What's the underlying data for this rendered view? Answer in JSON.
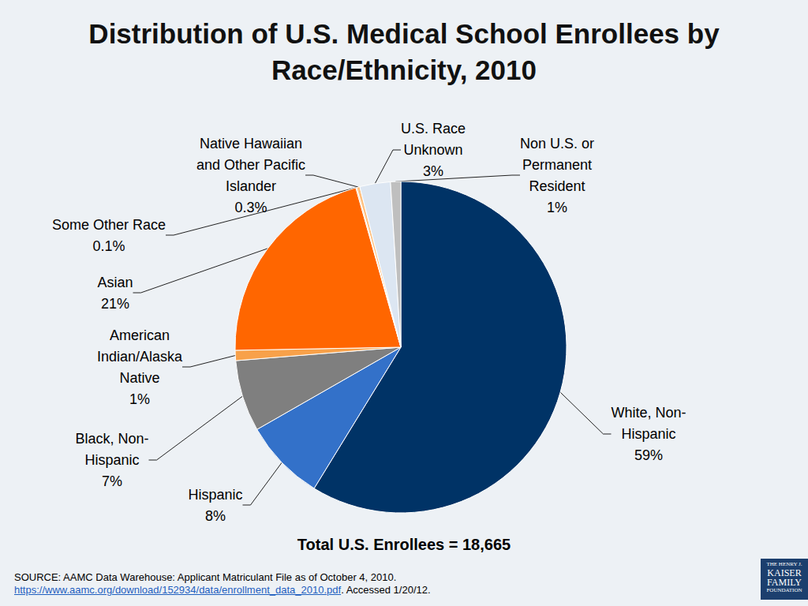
{
  "chart_data": {
    "type": "pie",
    "title": "Distribution of U.S. Medical School Enrollees by\nRace/Ethnicity, 2010",
    "categories": [
      "White, Non-\nHispanic",
      "Hispanic",
      "Black, Non-\nHispanic",
      "American\nIndian/Alaska\nNative",
      "Asian",
      "Some Other Race",
      "Native Hawaiian\nand Other Pacific\nIslander",
      "U.S. Race\nUnknown",
      "Non U.S. or\nPermanent\nResident"
    ],
    "values": [
      59,
      8,
      7,
      1,
      21,
      0.1,
      0.3,
      3,
      1
    ],
    "value_labels": [
      "59%",
      "8%",
      "7%",
      "1%",
      "21%",
      "0.1%",
      "0.3%",
      "3%",
      "1%"
    ],
    "colors": [
      "#003366",
      "#3371c9",
      "#7f7f7f",
      "#f8a14a",
      "#ff6600",
      "#ff9933",
      "#ffc080",
      "#dce6f2",
      "#bfbfbf"
    ],
    "data_labels": true,
    "annotations": [
      "Total U.S. Enrollees = 18,665"
    ],
    "source": {
      "text": "SOURCE: AAMC Data Warehouse: Applicant Matriculant File as of October 4, 2010.",
      "url": "https://www.aamc.org/download/152934/data/enrollment_data_2010.pdf",
      "accessed": ".  Accessed 1/20/12."
    },
    "logo": [
      "THE HENRY J.",
      "KAISER",
      "FAMILY",
      "FOUNDATION"
    ]
  }
}
